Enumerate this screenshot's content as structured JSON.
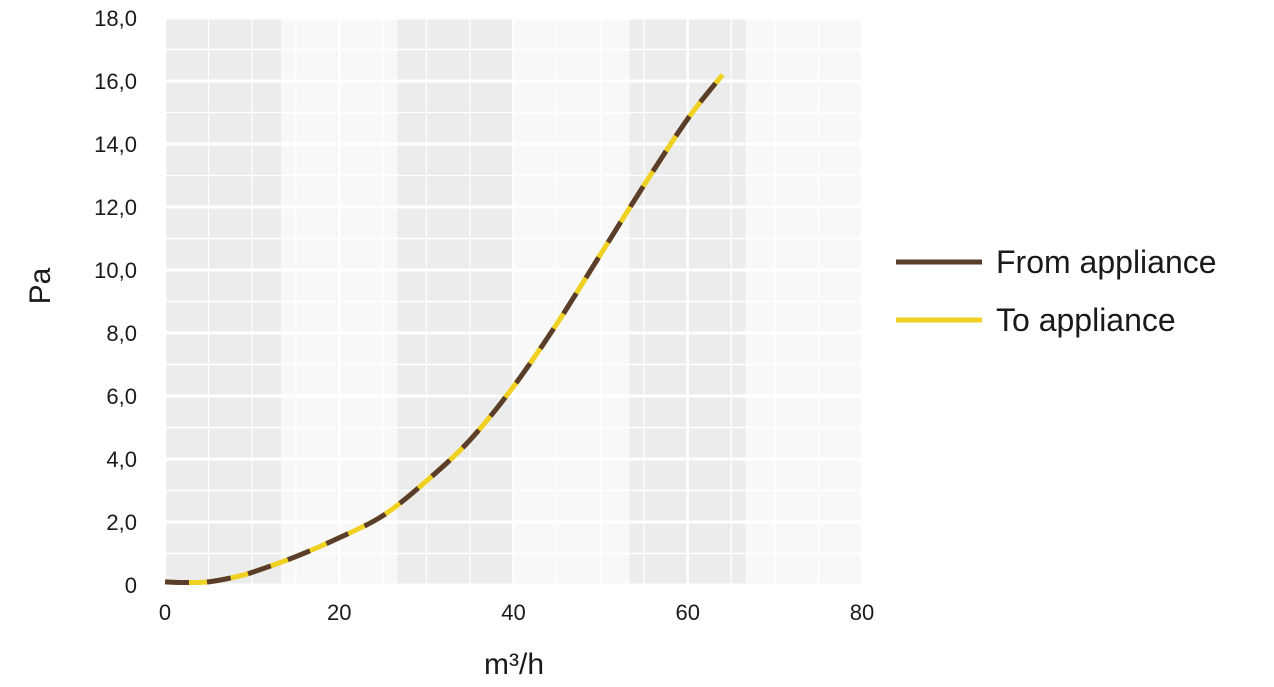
{
  "chart_data": {
    "type": "line",
    "title": "",
    "xlabel": "m³/h",
    "ylabel": "Pa",
    "xlim": [
      0,
      80
    ],
    "ylim": [
      0,
      18
    ],
    "x_ticks": [
      0,
      20,
      40,
      60,
      80
    ],
    "x_tick_labels": [
      "0",
      "20",
      "40",
      "60",
      "80"
    ],
    "y_ticks": [
      0,
      2,
      4,
      6,
      8,
      10,
      12,
      14,
      16,
      18
    ],
    "y_tick_labels": [
      "0",
      "2,0",
      "4,0",
      "6,0",
      "8,0",
      "10,0",
      "12,0",
      "14,0",
      "16,0",
      "18,0"
    ],
    "grid": true,
    "legend_position": "right",
    "series": [
      {
        "name": "From appliance",
        "color": "#5a3e2b",
        "style": "dashed",
        "x": [
          0,
          2,
          5,
          8,
          10,
          15,
          20,
          25,
          30,
          35,
          40,
          45,
          50,
          55,
          60,
          64
        ],
        "y": [
          0.1,
          0.08,
          0.1,
          0.25,
          0.4,
          0.9,
          1.5,
          2.2,
          3.3,
          4.6,
          6.3,
          8.3,
          10.5,
          12.7,
          14.8,
          16.2
        ]
      },
      {
        "name": "To appliance",
        "color": "#f0d020",
        "style": "solid",
        "x": [
          0,
          2,
          5,
          8,
          10,
          15,
          20,
          25,
          30,
          35,
          40,
          45,
          50,
          55,
          60,
          64
        ],
        "y": [
          0.1,
          0.08,
          0.1,
          0.25,
          0.4,
          0.9,
          1.5,
          2.2,
          3.3,
          4.6,
          6.3,
          8.3,
          10.5,
          12.7,
          14.8,
          16.2
        ]
      }
    ]
  }
}
